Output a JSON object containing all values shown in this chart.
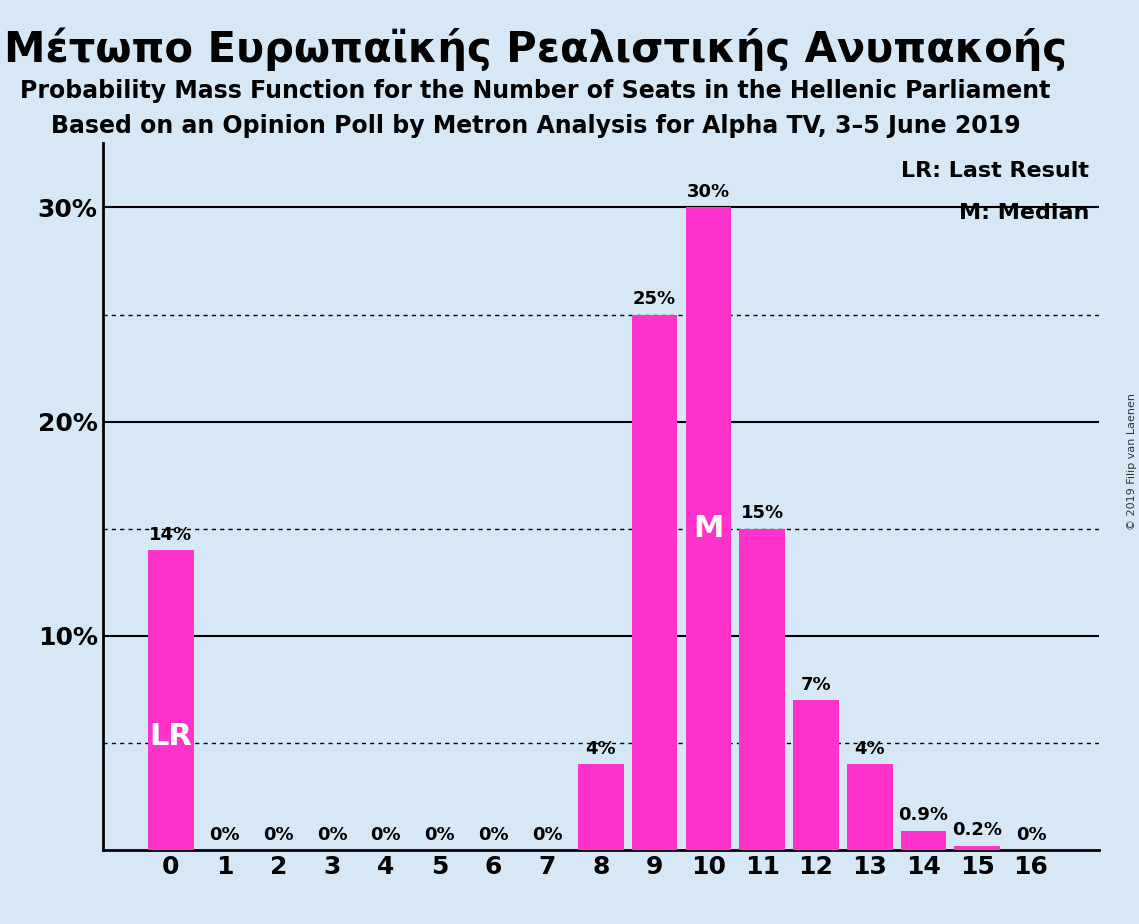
{
  "title_greek": "Μέτωπο Ευρωπαϊκής Ρεαλιστικής Ανυπακοής",
  "subtitle1": "Probability Mass Function for the Number of Seats in the Hellenic Parliament",
  "subtitle2": "Based on an Opinion Poll by Metron Analysis for Alpha TV, 3–5 June 2019",
  "copyright": "© 2019 Filip van Laenen",
  "categories": [
    0,
    1,
    2,
    3,
    4,
    5,
    6,
    7,
    8,
    9,
    10,
    11,
    12,
    13,
    14,
    15,
    16
  ],
  "values": [
    14,
    0,
    0,
    0,
    0,
    0,
    0,
    0,
    4,
    25,
    30,
    15,
    7,
    4,
    0.9,
    0.2,
    0
  ],
  "bar_color": "#FF33CC",
  "background_color": "#D6E8F5",
  "text_color": "#000000",
  "label_color_white": "#FFFFFF",
  "lr_seat": 0,
  "median_seat": 10,
  "legend_lr": "LR: Last Result",
  "legend_m": "M: Median",
  "yticks_major": [
    0,
    10,
    20,
    30
  ],
  "ytick_labels": [
    "",
    "10%",
    "20%",
    "30%"
  ],
  "dotted_lines": [
    5,
    15,
    25
  ],
  "solid_lines": [
    10,
    20,
    30
  ],
  "ylim": [
    0,
    33
  ],
  "bar_label_fontsize": 13,
  "axis_fontsize": 18,
  "title_fontsize": 30,
  "subtitle_fontsize": 17,
  "legend_fontsize": 16
}
